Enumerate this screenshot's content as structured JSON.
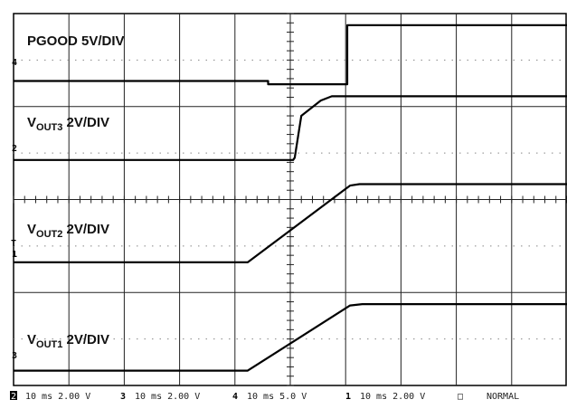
{
  "chart_data": {
    "type": "line",
    "x_divisions": 10,
    "y_divisions": 8,
    "grid": true,
    "trigger_marker": "T",
    "series": [
      {
        "channel": "4",
        "name_main": "PGOOD 5V/DIV",
        "name_sub": "",
        "name_suffix": "",
        "points": [
          [
            0,
            6.55
          ],
          [
            4.6,
            6.55
          ],
          [
            4.6,
            6.48
          ],
          [
            6.03,
            6.48
          ],
          [
            6.03,
            7.75
          ],
          [
            10,
            7.75
          ]
        ]
      },
      {
        "channel": "2",
        "name_main": "V",
        "name_sub": "OUT3",
        "name_suffix": " 2V/DIV",
        "points": [
          [
            0,
            4.85
          ],
          [
            5.05,
            4.85
          ],
          [
            5.08,
            4.9
          ],
          [
            5.2,
            5.8
          ],
          [
            5.55,
            6.13
          ],
          [
            5.75,
            6.22
          ],
          [
            10,
            6.22
          ]
        ]
      },
      {
        "channel": "1",
        "name_main": "V",
        "name_sub": "OUT2",
        "name_suffix": " 2V/DIV",
        "points": [
          [
            0,
            2.65
          ],
          [
            4.23,
            2.65
          ],
          [
            6.08,
            4.3
          ],
          [
            6.25,
            4.33
          ],
          [
            10,
            4.33
          ]
        ]
      },
      {
        "channel": "3",
        "name_main": "V",
        "name_sub": "OUT1",
        "name_suffix": " 2V/DIV",
        "points": [
          [
            0,
            0.32
          ],
          [
            4.23,
            0.32
          ],
          [
            6.08,
            1.72
          ],
          [
            6.3,
            1.75
          ],
          [
            10,
            1.75
          ]
        ]
      }
    ],
    "channel_markers": [
      "4",
      "2",
      "1",
      "3"
    ]
  },
  "status_bar": {
    "ch2": {
      "num": "2",
      "text": "10 ms 2.00 V"
    },
    "ch3": {
      "num": "3",
      "text": "10 ms 2.00 V"
    },
    "ch4": {
      "num": "4",
      "text": "10 ms 5.0 V"
    },
    "ch1": {
      "num": "1",
      "text": "10 ms 2.00 V"
    },
    "mode_box": "□",
    "mode": "NORMAL"
  }
}
